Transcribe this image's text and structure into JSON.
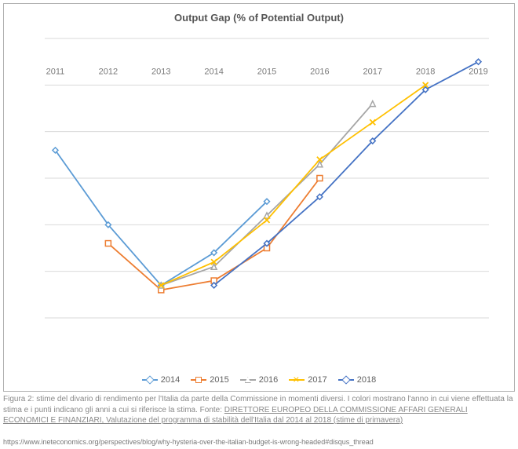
{
  "chart": {
    "type": "line",
    "title": "Output Gap (% of Potential Output)",
    "title_fontsize": 13,
    "title_color": "#555555",
    "background_color": "#ffffff",
    "border_color": "#b0b0b0",
    "grid_color": "#d9d9d9",
    "axis_label_color": "#7a7a7a",
    "axis_fontsize": 11,
    "x_categories": [
      "2011",
      "2012",
      "2013",
      "2014",
      "2015",
      "2016",
      "2017",
      "2018",
      "2019"
    ],
    "ylim": [
      -5,
      1
    ],
    "ytick_step": 1,
    "yticks": [
      1,
      0,
      -1,
      -2,
      -3,
      -4,
      -5
    ],
    "line_width": 1.8,
    "marker_size": 7,
    "series": [
      {
        "name": "2014",
        "color": "#5b9bd5",
        "marker": "diamond",
        "x": [
          "2011",
          "2012",
          "2013",
          "2014",
          "2015"
        ],
        "y": [
          -1.4,
          -3.0,
          -4.3,
          -3.6,
          -2.5
        ]
      },
      {
        "name": "2015",
        "color": "#ed7d31",
        "marker": "square",
        "x": [
          "2012",
          "2013",
          "2014",
          "2015",
          "2016"
        ],
        "y": [
          -3.4,
          -4.4,
          -4.2,
          -3.5,
          -2.0
        ]
      },
      {
        "name": "2016",
        "color": "#a5a5a5",
        "marker": "triangle",
        "x": [
          "2013",
          "2014",
          "2015",
          "2016",
          "2017"
        ],
        "y": [
          -4.3,
          -3.9,
          -2.8,
          -1.7,
          -0.4
        ]
      },
      {
        "name": "2017",
        "color": "#ffc000",
        "marker": "cross",
        "x": [
          "2013",
          "2014",
          "2015",
          "2016",
          "2017",
          "2018"
        ],
        "y": [
          -4.3,
          -3.8,
          -2.9,
          -1.6,
          -0.8,
          0.0
        ]
      },
      {
        "name": "2018",
        "color": "#4472c4",
        "marker": "diamond",
        "x": [
          "2014",
          "2015",
          "2016",
          "2017",
          "2018",
          "2019"
        ],
        "y": [
          -4.3,
          -3.4,
          -2.4,
          -1.2,
          -0.1,
          0.5
        ]
      }
    ]
  },
  "caption": {
    "prefix": "Figura 2: stime del divario di rendimento per l'Italia da parte della Commissione in momenti diversi. I colori mostrano l'anno in cui viene effettuata la stima e i punti indicano gli anni a cui si riferisce la stima.  Fonte:  ",
    "link": "DIRETTORE EUROPEO DELLA COMMISSIONE AFFARI GENERALI ECONOMICI E FINANZIARI, Valutazione del programma di stabilità dell'Italia dal 2014 al 2018 (stime di primavera)",
    "color": "#888888",
    "fontsize": 10
  },
  "url": "https://www.ineteconomics.org/perspectives/blog/why-hysteria-over-the-italian-budget-is-wrong-headed#disqus_thread"
}
